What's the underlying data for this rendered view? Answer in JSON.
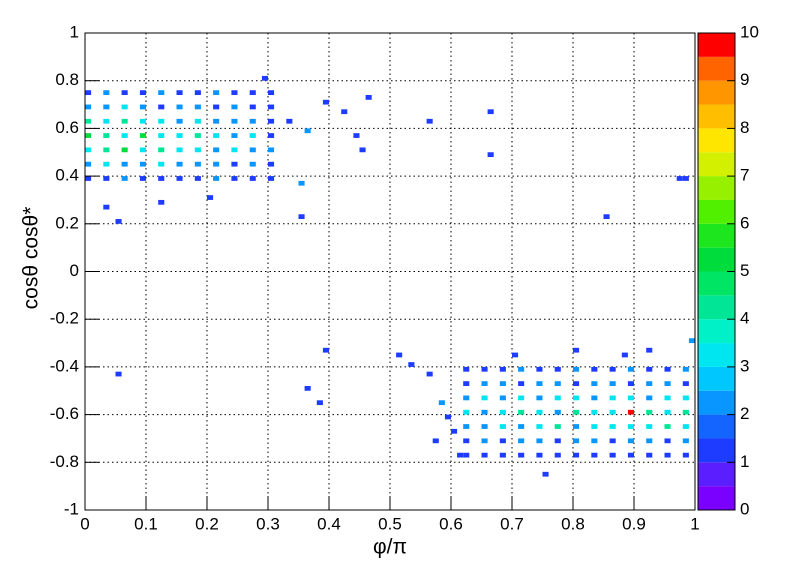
{
  "chart_data": {
    "type": "heatmap",
    "x_label": "φ/π",
    "y_label": "cosθ cosθ*",
    "xlim": [
      0,
      1
    ],
    "ylim": [
      -1,
      1
    ],
    "xticks": [
      0,
      0.1,
      0.2,
      0.3,
      0.4,
      0.5,
      0.6,
      0.7,
      0.8,
      0.9,
      1
    ],
    "yticks": [
      -1,
      -0.8,
      -0.6,
      -0.4,
      -0.2,
      0,
      0.2,
      0.4,
      0.6,
      0.8,
      1
    ],
    "bin_width": [
      0.01,
      0.02
    ],
    "zlim": [
      0,
      10
    ],
    "zticks": [
      0,
      1,
      2,
      3,
      4,
      5,
      6,
      7,
      8,
      9,
      10
    ],
    "grid": true,
    "palette": [
      "#7a00ff",
      "#5a1eff",
      "#1e3cff",
      "#1464ff",
      "#0a96ff",
      "#00c8ff",
      "#00e6f0",
      "#00f0c8",
      "#00e696",
      "#00e664",
      "#00dc3c",
      "#1ee61e",
      "#50f000",
      "#96f000",
      "#d2f000",
      "#ffe600",
      "#ffbe00",
      "#ff9600",
      "#ff6400",
      "#ff0000"
    ],
    "cells": [
      [
        0.0,
        0.74,
        1
      ],
      [
        0.03,
        0.74,
        2
      ],
      [
        0.06,
        0.74,
        1
      ],
      [
        0.09,
        0.74,
        1
      ],
      [
        0.12,
        0.74,
        2
      ],
      [
        0.15,
        0.74,
        1
      ],
      [
        0.18,
        0.74,
        1
      ],
      [
        0.21,
        0.74,
        2
      ],
      [
        0.24,
        0.74,
        1
      ],
      [
        0.27,
        0.74,
        1
      ],
      [
        0.3,
        0.74,
        1
      ],
      [
        0.0,
        0.68,
        2
      ],
      [
        0.03,
        0.68,
        2
      ],
      [
        0.06,
        0.68,
        3
      ],
      [
        0.09,
        0.68,
        2
      ],
      [
        0.12,
        0.68,
        1
      ],
      [
        0.15,
        0.68,
        2
      ],
      [
        0.18,
        0.68,
        2
      ],
      [
        0.21,
        0.68,
        1
      ],
      [
        0.24,
        0.68,
        2
      ],
      [
        0.27,
        0.68,
        1
      ],
      [
        0.3,
        0.68,
        1
      ],
      [
        0.0,
        0.62,
        4
      ],
      [
        0.03,
        0.62,
        3
      ],
      [
        0.06,
        0.62,
        4
      ],
      [
        0.09,
        0.62,
        3
      ],
      [
        0.12,
        0.62,
        3
      ],
      [
        0.15,
        0.62,
        2
      ],
      [
        0.18,
        0.62,
        3
      ],
      [
        0.21,
        0.62,
        2
      ],
      [
        0.24,
        0.62,
        2
      ],
      [
        0.27,
        0.62,
        2
      ],
      [
        0.3,
        0.62,
        1
      ],
      [
        0.0,
        0.56,
        5
      ],
      [
        0.03,
        0.56,
        4
      ],
      [
        0.06,
        0.56,
        3
      ],
      [
        0.09,
        0.56,
        5
      ],
      [
        0.12,
        0.56,
        3
      ],
      [
        0.15,
        0.56,
        3
      ],
      [
        0.18,
        0.56,
        4
      ],
      [
        0.21,
        0.56,
        3
      ],
      [
        0.24,
        0.56,
        2
      ],
      [
        0.27,
        0.56,
        3
      ],
      [
        0.3,
        0.56,
        1
      ],
      [
        0.0,
        0.5,
        3
      ],
      [
        0.03,
        0.5,
        4
      ],
      [
        0.06,
        0.5,
        5
      ],
      [
        0.09,
        0.5,
        3
      ],
      [
        0.12,
        0.5,
        4
      ],
      [
        0.15,
        0.5,
        3
      ],
      [
        0.18,
        0.5,
        3
      ],
      [
        0.21,
        0.5,
        2
      ],
      [
        0.24,
        0.5,
        3
      ],
      [
        0.27,
        0.5,
        2
      ],
      [
        0.3,
        0.5,
        2
      ],
      [
        0.0,
        0.44,
        2
      ],
      [
        0.03,
        0.44,
        3
      ],
      [
        0.06,
        0.44,
        2
      ],
      [
        0.09,
        0.44,
        2
      ],
      [
        0.12,
        0.44,
        3
      ],
      [
        0.15,
        0.44,
        2
      ],
      [
        0.18,
        0.44,
        2
      ],
      [
        0.21,
        0.44,
        2
      ],
      [
        0.24,
        0.44,
        1
      ],
      [
        0.27,
        0.44,
        2
      ],
      [
        0.3,
        0.44,
        1
      ],
      [
        0.0,
        0.38,
        1
      ],
      [
        0.03,
        0.38,
        1
      ],
      [
        0.06,
        0.38,
        2
      ],
      [
        0.09,
        0.38,
        1
      ],
      [
        0.12,
        0.38,
        1
      ],
      [
        0.15,
        0.38,
        1
      ],
      [
        0.18,
        0.38,
        1
      ],
      [
        0.21,
        0.38,
        2
      ],
      [
        0.24,
        0.38,
        1
      ],
      [
        0.27,
        0.38,
        1
      ],
      [
        0.3,
        0.38,
        1
      ],
      [
        0.33,
        0.62,
        1
      ],
      [
        0.36,
        0.58,
        2
      ],
      [
        0.39,
        0.7,
        1
      ],
      [
        0.42,
        0.66,
        1
      ],
      [
        0.44,
        0.56,
        1
      ],
      [
        0.46,
        0.72,
        1
      ],
      [
        0.35,
        0.36,
        2
      ],
      [
        0.05,
        0.2,
        1
      ],
      [
        0.03,
        0.26,
        1
      ],
      [
        0.12,
        0.28,
        1
      ],
      [
        0.2,
        0.3,
        1
      ],
      [
        0.29,
        0.8,
        1
      ],
      [
        0.35,
        0.22,
        1
      ],
      [
        0.66,
        0.66,
        1
      ],
      [
        0.66,
        0.48,
        1
      ],
      [
        0.56,
        0.62,
        1
      ],
      [
        0.85,
        0.22,
        1
      ],
      [
        0.98,
        0.38,
        1
      ],
      [
        0.97,
        0.38,
        1
      ],
      [
        0.45,
        0.5,
        1
      ],
      [
        0.62,
        -0.42,
        1
      ],
      [
        0.65,
        -0.42,
        1
      ],
      [
        0.68,
        -0.42,
        1
      ],
      [
        0.71,
        -0.42,
        2
      ],
      [
        0.74,
        -0.42,
        1
      ],
      [
        0.77,
        -0.42,
        1
      ],
      [
        0.8,
        -0.42,
        2
      ],
      [
        0.83,
        -0.42,
        1
      ],
      [
        0.86,
        -0.42,
        1
      ],
      [
        0.89,
        -0.42,
        2
      ],
      [
        0.92,
        -0.42,
        1
      ],
      [
        0.95,
        -0.42,
        1
      ],
      [
        0.98,
        -0.42,
        2
      ],
      [
        0.62,
        -0.48,
        1
      ],
      [
        0.65,
        -0.48,
        2
      ],
      [
        0.68,
        -0.48,
        2
      ],
      [
        0.71,
        -0.48,
        1
      ],
      [
        0.74,
        -0.48,
        2
      ],
      [
        0.77,
        -0.48,
        2
      ],
      [
        0.8,
        -0.48,
        1
      ],
      [
        0.83,
        -0.48,
        2
      ],
      [
        0.86,
        -0.48,
        2
      ],
      [
        0.89,
        -0.48,
        1
      ],
      [
        0.92,
        -0.48,
        2
      ],
      [
        0.95,
        -0.48,
        2
      ],
      [
        0.98,
        -0.48,
        1
      ],
      [
        0.62,
        -0.54,
        2
      ],
      [
        0.65,
        -0.54,
        3
      ],
      [
        0.68,
        -0.54,
        2
      ],
      [
        0.71,
        -0.54,
        3
      ],
      [
        0.74,
        -0.54,
        2
      ],
      [
        0.77,
        -0.54,
        3
      ],
      [
        0.8,
        -0.54,
        3
      ],
      [
        0.83,
        -0.54,
        2
      ],
      [
        0.86,
        -0.54,
        3
      ],
      [
        0.89,
        -0.54,
        3
      ],
      [
        0.92,
        -0.54,
        2
      ],
      [
        0.95,
        -0.54,
        3
      ],
      [
        0.98,
        -0.54,
        3
      ],
      [
        0.62,
        -0.6,
        3
      ],
      [
        0.65,
        -0.6,
        2
      ],
      [
        0.68,
        -0.6,
        3
      ],
      [
        0.71,
        -0.6,
        4
      ],
      [
        0.74,
        -0.6,
        3
      ],
      [
        0.77,
        -0.6,
        2
      ],
      [
        0.8,
        -0.6,
        4
      ],
      [
        0.83,
        -0.6,
        3
      ],
      [
        0.86,
        -0.6,
        3
      ],
      [
        0.89,
        -0.6,
        10
      ],
      [
        0.92,
        -0.6,
        4
      ],
      [
        0.95,
        -0.6,
        3
      ],
      [
        0.98,
        -0.6,
        4
      ],
      [
        0.62,
        -0.66,
        2
      ],
      [
        0.65,
        -0.66,
        2
      ],
      [
        0.68,
        -0.66,
        3
      ],
      [
        0.71,
        -0.66,
        2
      ],
      [
        0.74,
        -0.66,
        3
      ],
      [
        0.77,
        -0.66,
        4
      ],
      [
        0.8,
        -0.66,
        2
      ],
      [
        0.83,
        -0.66,
        3
      ],
      [
        0.86,
        -0.66,
        3
      ],
      [
        0.89,
        -0.66,
        3
      ],
      [
        0.92,
        -0.66,
        3
      ],
      [
        0.95,
        -0.66,
        4
      ],
      [
        0.98,
        -0.66,
        3
      ],
      [
        0.62,
        -0.72,
        1
      ],
      [
        0.65,
        -0.72,
        2
      ],
      [
        0.68,
        -0.72,
        1
      ],
      [
        0.71,
        -0.72,
        2
      ],
      [
        0.74,
        -0.72,
        2
      ],
      [
        0.77,
        -0.72,
        1
      ],
      [
        0.8,
        -0.72,
        2
      ],
      [
        0.83,
        -0.72,
        2
      ],
      [
        0.86,
        -0.72,
        1
      ],
      [
        0.89,
        -0.72,
        2
      ],
      [
        0.92,
        -0.72,
        2
      ],
      [
        0.95,
        -0.72,
        1
      ],
      [
        0.98,
        -0.72,
        2
      ],
      [
        0.62,
        -0.78,
        1
      ],
      [
        0.65,
        -0.78,
        1
      ],
      [
        0.68,
        -0.78,
        1
      ],
      [
        0.71,
        -0.78,
        1
      ],
      [
        0.74,
        -0.78,
        1
      ],
      [
        0.77,
        -0.78,
        1
      ],
      [
        0.8,
        -0.78,
        1
      ],
      [
        0.83,
        -0.78,
        1
      ],
      [
        0.86,
        -0.78,
        1
      ],
      [
        0.89,
        -0.78,
        1
      ],
      [
        0.92,
        -0.78,
        1
      ],
      [
        0.95,
        -0.78,
        1
      ],
      [
        0.98,
        -0.78,
        1
      ],
      [
        0.58,
        -0.56,
        2
      ],
      [
        0.59,
        -0.62,
        1
      ],
      [
        0.6,
        -0.68,
        1
      ],
      [
        0.56,
        -0.44,
        1
      ],
      [
        0.53,
        -0.4,
        1
      ],
      [
        0.51,
        -0.36,
        1
      ],
      [
        0.39,
        -0.34,
        1
      ],
      [
        0.05,
        -0.44,
        1
      ],
      [
        0.36,
        -0.5,
        1
      ],
      [
        0.38,
        -0.56,
        1
      ],
      [
        0.75,
        -0.86,
        1
      ],
      [
        0.7,
        -0.36,
        1
      ],
      [
        0.8,
        -0.34,
        1
      ],
      [
        0.92,
        -0.34,
        1
      ],
      [
        0.99,
        -0.3,
        2
      ],
      [
        0.88,
        -0.36,
        1
      ],
      [
        0.57,
        -0.72,
        1
      ],
      [
        0.61,
        -0.78,
        1
      ]
    ]
  }
}
